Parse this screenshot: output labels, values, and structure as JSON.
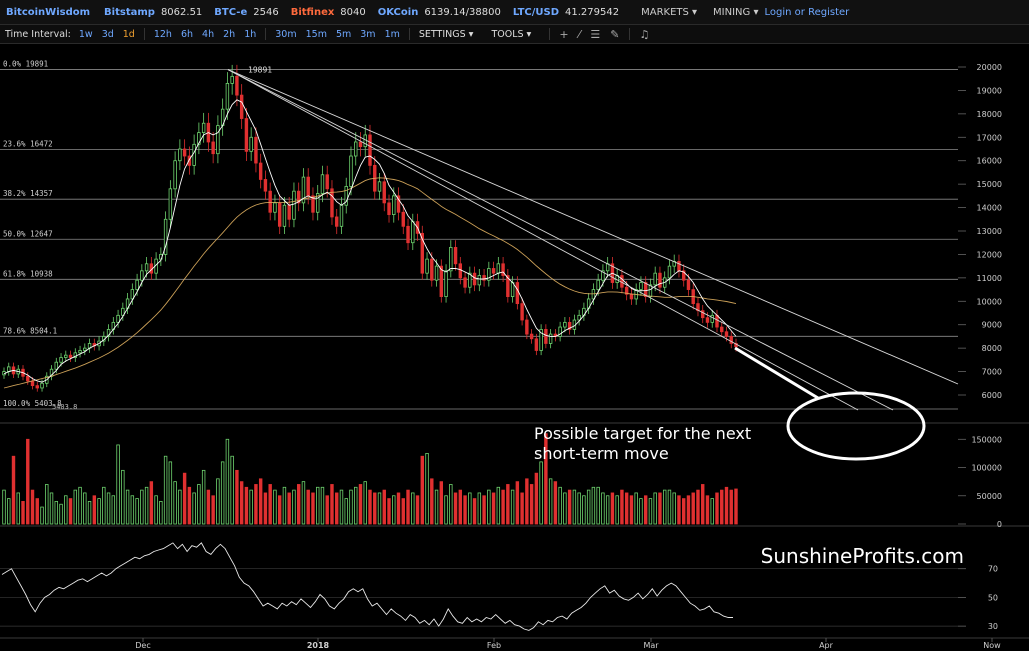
{
  "topbar": {
    "brand": "BitcoinWisdom",
    "exchanges": [
      {
        "name": "Bitstamp",
        "value": "8062.51",
        "color": "blue"
      },
      {
        "name": "BTC-e",
        "value": "2546",
        "color": "blue"
      },
      {
        "name": "Bitfinex",
        "value": "8040",
        "color": "red"
      },
      {
        "name": "OKCoin",
        "value": "6139.14/38800",
        "color": "blue"
      },
      {
        "name": "LTC/USD",
        "value": "41.279542",
        "color": "blue"
      }
    ],
    "menus": [
      "MARKETS ▾",
      "MINING ▾"
    ],
    "login": "Login",
    "or": "or",
    "register": "Register"
  },
  "toolbar": {
    "interval_label": "Time Interval:",
    "intervals_group1": [
      "1w",
      "3d",
      "1d"
    ],
    "intervals_group2": [
      "12h",
      "6h",
      "4h",
      "2h",
      "1h"
    ],
    "intervals_group3": [
      "30m",
      "15m",
      "5m",
      "3m",
      "1m"
    ],
    "active_interval": "1d",
    "settings": "SETTINGS ▾",
    "tools": "TOOLS ▾",
    "tool_icons": [
      "plus-icon",
      "line-icon",
      "menu-icon",
      "pen-icon",
      "bell-icon"
    ]
  },
  "annotation": {
    "line1": "Possible target for the next",
    "line2": "short-term move"
  },
  "watermark": "SunshineProfits.com",
  "chart_data": {
    "type": "candlestick",
    "price_axis": {
      "min": 5000,
      "max": 20000,
      "ticks": [
        20000,
        19000,
        18000,
        17000,
        16000,
        15000,
        14000,
        13000,
        12000,
        11000,
        10000,
        9000,
        8000,
        7000,
        6000
      ]
    },
    "fib_levels": [
      {
        "label": "0.0% 19891",
        "value": 19891
      },
      {
        "label": "23.6% 16472",
        "value": 16472
      },
      {
        "label": "38.2% 14357",
        "value": 14357
      },
      {
        "label": "50.0% 12647",
        "value": 12647
      },
      {
        "label": "61.8% 10938",
        "value": 10938
      },
      {
        "label": "78.6% 8504.1",
        "value": 8504.1
      },
      {
        "label": "100.0% 5403.8",
        "value": 5403.8
      }
    ],
    "peak_label": "19891",
    "low_label": "5403.8",
    "x_labels": [
      "Dec",
      "2018",
      "Feb",
      "Mar",
      "Apr",
      "Now"
    ],
    "close": [
      7000,
      7200,
      6900,
      7100,
      6800,
      6600,
      6400,
      6300,
      6500,
      6800,
      7100,
      7400,
      7600,
      7700,
      7600,
      7800,
      7900,
      8000,
      8200,
      8100,
      8300,
      8500,
      8800,
      9100,
      9400,
      9700,
      10100,
      10500,
      10900,
      11300,
      11600,
      11200,
      11800,
      12000,
      13500,
      14800,
      16000,
      16500,
      16200,
      15800,
      16700,
      17200,
      17600,
      16800,
      16300,
      17500,
      18200,
      19300,
      19600,
      18800,
      17800,
      16400,
      17000,
      15900,
      15200,
      14700,
      13800,
      14200,
      13200,
      14100,
      13500,
      14700,
      14200,
      15300,
      14500,
      13800,
      14600,
      15400,
      14800,
      13600,
      13200,
      14100,
      14900,
      16200,
      16800,
      16600,
      17100,
      15800,
      14700,
      15100,
      14200,
      13700,
      14500,
      13800,
      13200,
      12500,
      13400,
      12900,
      11200,
      11800,
      10900,
      11500,
      10200,
      11300,
      12300,
      11600,
      11000,
      10600,
      11200,
      10700,
      11100,
      10900,
      11400,
      11200,
      11600,
      11100,
      10200,
      10800,
      9900,
      9200,
      8600,
      8400,
      7900,
      8800,
      8200,
      8600,
      8500,
      8900,
      9100,
      8800,
      9200,
      9400,
      9700,
      10100,
      10500,
      10900,
      11300,
      11600,
      10800,
      11100,
      10600,
      10300,
      10100,
      10500,
      10800,
      10200,
      10700,
      11200,
      10600,
      11000,
      11500,
      11700,
      11300,
      10900,
      10500,
      9900,
      9600,
      9300,
      9100,
      9400,
      8900,
      8700,
      8500,
      8200,
      8060
    ],
    "ma_short": [
      6900,
      7000,
      7050,
      7000,
      6950,
      6850,
      6700,
      6600,
      6550,
      6650,
      6850,
      7050,
      7300,
      7450,
      7550,
      7650,
      7750,
      7850,
      8000,
      8100,
      8200,
      8350,
      8550,
      8800,
      9050,
      9350,
      9700,
      10050,
      10400,
      10800,
      11150,
      11350,
      11550,
      11750,
      12350,
      13150,
      14050,
      14950,
      15650,
      16050,
      16350,
      16750,
      17100,
      17200,
      17100,
      17200,
      17500,
      18000,
      18400,
      18600,
      18500,
      18100,
      17700,
      17300,
      16700,
      16100,
      15500,
      14950,
      14500,
      14300,
      14100,
      14150,
      14250,
      14400,
      14500,
      14400,
      14400,
      14550,
      14650,
      14500,
      14250,
      14100,
      14250,
      14750,
      15300,
      15800,
      16150,
      16200,
      16050,
      15850,
      15450,
      14950,
      14650,
      14350,
      14050,
      13650,
      13400,
      13150,
      12650,
      12250,
      11900,
      11650,
      11350,
      11250,
      11400,
      11400,
      11350,
      11250,
      11150,
      11000,
      10950,
      10950,
      11000,
      11100,
      11200,
      11250,
      11000,
      10800,
      10500,
      10100,
      9650,
      9250,
      8850,
      8650,
      8550,
      8500,
      8500,
      8600,
      8750,
      8850,
      8950,
      9150,
      9400,
      9700,
      10050,
      10400,
      10750,
      11100,
      11200,
      11100,
      10950,
      10750,
      10550,
      10450,
      10450,
      10450,
      10500,
      10650,
      10750,
      10800,
      10950,
      11150,
      11300,
      11250,
      11050,
      10800,
      10450,
      10100,
      9800,
      9600,
      9400,
      9200,
      9000,
      8750,
      8500
    ],
    "ma_long": [
      6300,
      6350,
      6400,
      6450,
      6500,
      6550,
      6600,
      6650,
      6700,
      6750,
      6800,
      6870,
      6940,
      7010,
      7080,
      7150,
      7230,
      7310,
      7400,
      7490,
      7580,
      7680,
      7790,
      7910,
      8040,
      8180,
      8330,
      8490,
      8660,
      8840,
      9030,
      9220,
      9420,
      9630,
      9870,
      10130,
      10400,
      10680,
      10960,
      11230,
      11500,
      11760,
      12020,
      12260,
      12480,
      12700,
      12920,
      13150,
      13380,
      13590,
      13760,
      13900,
      14020,
      14110,
      14170,
      14210,
      14220,
      14220,
      14210,
      14220,
      14230,
      14260,
      14300,
      14360,
      14410,
      14440,
      14490,
      14560,
      14620,
      14650,
      14660,
      14680,
      14730,
      14820,
      14930,
      15040,
      15150,
      15220,
      15250,
      15270,
      15260,
      15230,
      15200,
      15150,
      15080,
      14980,
      14900,
      14800,
      14650,
      14500,
      14350,
      14210,
      14050,
      13920,
      13820,
      13710,
      13590,
      13470,
      13350,
      13220,
      13100,
      12990,
      12890,
      12790,
      12690,
      12590,
      12470,
      12350,
      12210,
      12050,
      11880,
      11700,
      11510,
      11340,
      11170,
      11010,
      10860,
      10730,
      10620,
      10520,
      10440,
      10380,
      10340,
      10320,
      10320,
      10340,
      10370,
      10400,
      10400,
      10390,
      10370,
      10340,
      10310,
      10290,
      10270,
      10240,
      10220,
      10210,
      10190,
      10170,
      10170,
      10180,
      10200,
      10210,
      10210,
      10200,
      10170,
      10140,
      10100,
      10080,
      10050,
      10020,
      9990,
      9950,
      9900
    ],
    "volume_axis": {
      "ticks": [
        150000,
        100000,
        50000,
        0
      ]
    },
    "volume": [
      60000,
      45000,
      120000,
      55000,
      40000,
      150000,
      60000,
      45000,
      30000,
      70000,
      55000,
      40000,
      35000,
      50000,
      45000,
      60000,
      65000,
      55000,
      40000,
      50000,
      45000,
      65000,
      55000,
      50000,
      140000,
      95000,
      60000,
      50000,
      45000,
      60000,
      65000,
      75000,
      50000,
      40000,
      120000,
      110000,
      75000,
      60000,
      90000,
      65000,
      55000,
      70000,
      95000,
      60000,
      50000,
      80000,
      110000,
      150000,
      120000,
      95000,
      75000,
      65000,
      60000,
      70000,
      80000,
      55000,
      70000,
      60000,
      50000,
      65000,
      55000,
      60000,
      70000,
      75000,
      60000,
      55000,
      65000,
      65000,
      50000,
      70000,
      55000,
      60000,
      45000,
      60000,
      65000,
      70000,
      75000,
      60000,
      55000,
      55000,
      60000,
      45000,
      50000,
      55000,
      45000,
      60000,
      55000,
      50000,
      120000,
      125000,
      80000,
      60000,
      75000,
      50000,
      70000,
      55000,
      60000,
      50000,
      55000,
      45000,
      55000,
      50000,
      60000,
      55000,
      65000,
      60000,
      70000,
      60000,
      75000,
      55000,
      80000,
      70000,
      90000,
      110000,
      160000,
      80000,
      75000,
      65000,
      55000,
      60000,
      60000,
      55000,
      50000,
      60000,
      65000,
      65000,
      55000,
      50000,
      55000,
      50000,
      60000,
      55000,
      50000,
      55000,
      45000,
      50000,
      45000,
      55000,
      55000,
      60000,
      60000,
      55000,
      50000,
      45000,
      50000,
      55000,
      60000,
      70000,
      50000,
      45000,
      55000,
      60000,
      65000,
      60000,
      62000
    ],
    "oscillator_axis": {
      "ticks": [
        70,
        50,
        30
      ]
    },
    "oscillator": [
      66,
      68,
      70,
      64,
      58,
      52,
      45,
      40,
      46,
      50,
      52,
      55,
      57,
      56,
      58,
      60,
      62,
      63,
      61,
      63,
      65,
      67,
      65,
      67,
      70,
      72,
      74,
      76,
      78,
      77,
      79,
      80,
      82,
      83,
      84,
      86,
      88,
      84,
      87,
      82,
      86,
      85,
      88,
      82,
      80,
      84,
      87,
      84,
      78,
      72,
      64,
      60,
      58,
      54,
      49,
      44,
      46,
      44,
      42,
      46,
      44,
      47,
      45,
      49,
      46,
      43,
      47,
      52,
      49,
      44,
      42,
      46,
      49,
      54,
      56,
      54,
      56,
      49,
      44,
      46,
      42,
      38,
      42,
      39,
      37,
      34,
      38,
      36,
      32,
      34,
      31,
      35,
      30,
      35,
      42,
      37,
      33,
      32,
      36,
      33,
      35,
      33,
      36,
      35,
      38,
      35,
      32,
      34,
      31,
      30,
      28,
      27,
      29,
      33,
      31,
      34,
      33,
      36,
      37,
      35,
      39,
      41,
      43,
      46,
      50,
      53,
      56,
      58,
      53,
      55,
      51,
      49,
      48,
      50,
      53,
      49,
      52,
      56,
      51,
      55,
      58,
      60,
      58,
      54,
      50,
      46,
      44,
      41,
      42,
      44,
      40,
      39,
      37,
      36,
      36
    ]
  }
}
